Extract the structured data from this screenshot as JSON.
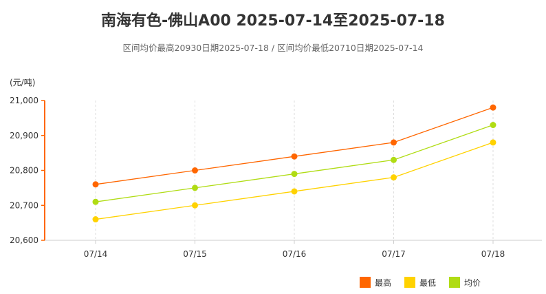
{
  "title": "南海有色-佛山A00 2025-07-14至2025-07-18",
  "subtitle": "区间均价最高20930日期2025-07-18 / 区间均价最低20710日期2025-07-14",
  "chart_data": {
    "type": "line",
    "ylabel": "(元/吨)",
    "categories": [
      "07/14",
      "07/15",
      "07/16",
      "07/17",
      "07/18"
    ],
    "ylim": [
      20600,
      21000
    ],
    "yticks": [
      20600,
      20700,
      20800,
      20900,
      21000
    ],
    "ytick_labels": [
      "20,600",
      "20,700",
      "20,800",
      "20,900",
      "21,000"
    ],
    "legend_position": "bottom-right",
    "grid": "vertical dashed",
    "series": [
      {
        "name": "最高",
        "color": "#FF6600",
        "values": [
          20760,
          20800,
          20840,
          20880,
          20980
        ]
      },
      {
        "name": "最低",
        "color": "#FFD200",
        "values": [
          20660,
          20700,
          20740,
          20780,
          20880
        ]
      },
      {
        "name": "均价",
        "color": "#B0DC14",
        "values": [
          20710,
          20750,
          20790,
          20830,
          20930
        ]
      }
    ]
  }
}
